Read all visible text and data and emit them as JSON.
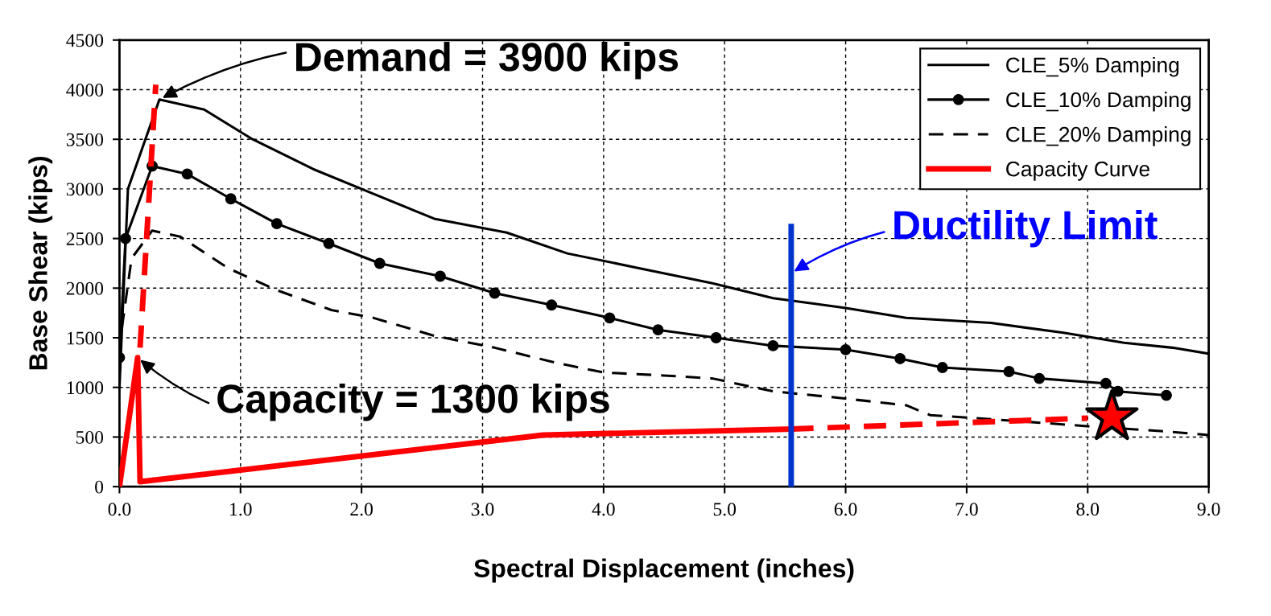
{
  "chart_data": {
    "type": "line",
    "xlabel": "Spectral Displacement (inches)",
    "ylabel": "Base Shear (kips)",
    "xlim": [
      0,
      9
    ],
    "xticks": [
      {
        "value": 0,
        "label": "0.0"
      },
      {
        "value": 1,
        "label": "1.0"
      },
      {
        "value": 2,
        "label": "2.0"
      },
      {
        "value": 3,
        "label": "3.0"
      },
      {
        "value": 4,
        "label": "4.0"
      },
      {
        "value": 5,
        "label": "5.0"
      },
      {
        "value": 6,
        "label": "6.0"
      },
      {
        "value": 7,
        "label": "7.0"
      },
      {
        "value": 8,
        "label": "8.0"
      },
      {
        "value": 9,
        "label": "9.0"
      }
    ],
    "ylim": [
      0,
      4500
    ],
    "yticks": [
      0,
      500,
      1000,
      1500,
      2000,
      2500,
      3000,
      3500,
      4000,
      4500
    ],
    "grid": true,
    "legend": "top right",
    "series": [
      {
        "name": "CLE_5% Damping",
        "color": "#000000",
        "marker": "none",
        "line_style": "solid",
        "x": [
          0.0,
          0.07,
          0.33,
          0.7,
          1.1,
          1.6,
          2.1,
          2.6,
          3.2,
          3.7,
          4.3,
          4.9,
          5.4,
          6.0,
          6.5,
          7.2,
          7.8,
          8.3,
          8.7,
          9.0
        ],
        "values": [
          1000,
          3000,
          3900,
          3800,
          3500,
          3200,
          2950,
          2700,
          2560,
          2350,
          2200,
          2050,
          1900,
          1800,
          1700,
          1650,
          1550,
          1450,
          1400,
          1340
        ]
      },
      {
        "name": "CLE_10% Damping",
        "color": "#000000",
        "marker": "circle",
        "line_style": "solid",
        "x": [
          0.0,
          0.05,
          0.27,
          0.56,
          0.92,
          1.3,
          1.73,
          2.15,
          2.65,
          3.1,
          3.57,
          4.05,
          4.45,
          4.93,
          5.4,
          6.0,
          6.45,
          6.8,
          7.35,
          7.6,
          8.15,
          8.25,
          8.65
        ],
        "values": [
          1300,
          2500,
          3230,
          3150,
          2900,
          2650,
          2450,
          2250,
          2120,
          1950,
          1830,
          1700,
          1580,
          1500,
          1420,
          1380,
          1290,
          1200,
          1160,
          1090,
          1040,
          960,
          920
        ]
      },
      {
        "name": "CLE_20% Damping",
        "color": "#000000",
        "marker": "none",
        "line_style": "dashed",
        "x": [
          0.02,
          0.1,
          0.27,
          0.5,
          0.9,
          1.3,
          1.75,
          2.1,
          2.6,
          3.1,
          3.6,
          4.0,
          4.5,
          4.9,
          5.4,
          5.9,
          6.5,
          6.7,
          7.2,
          8.1,
          8.6,
          9.0
        ],
        "values": [
          1600,
          2300,
          2580,
          2520,
          2200,
          1980,
          1780,
          1700,
          1520,
          1400,
          1250,
          1150,
          1120,
          1090,
          960,
          900,
          820,
          720,
          680,
          600,
          560,
          520
        ]
      },
      {
        "name": "Capacity Curve",
        "color": "#ff0000",
        "marker": "none",
        "line_style": "solid",
        "x": [
          0.0,
          0.15,
          0.17,
          3.5,
          5.55
        ],
        "values": [
          0,
          1300,
          50,
          520,
          580
        ]
      },
      {
        "color": "#ff0000",
        "marker": "none",
        "line_style": "dashed",
        "x": [
          5.55,
          8.0
        ],
        "values": [
          580,
          690
        ]
      },
      {
        "color": "#ff0000",
        "marker": "none",
        "line_style": "dashed",
        "x": [
          0.17,
          0.3
        ],
        "values": [
          1400,
          4050
        ]
      },
      {
        "color": "#0033cc",
        "marker": "none",
        "line_style": "solid",
        "x": [
          5.55,
          5.55
        ],
        "values": [
          0,
          2620
        ]
      },
      {
        "type": "scatter",
        "color": "#ff0000",
        "marker": "star",
        "x": [
          8.2
        ],
        "values": [
          700
        ]
      }
    ],
    "annotations": [
      {
        "text": "Demand = 3900 kips",
        "x": 0.33,
        "y": 3900
      },
      {
        "text": "Capacity = 1300 kips",
        "x": 0.15,
        "y": 1300
      },
      {
        "text": "Ductility Limit",
        "x": 5.55,
        "y": 2150
      }
    ]
  }
}
